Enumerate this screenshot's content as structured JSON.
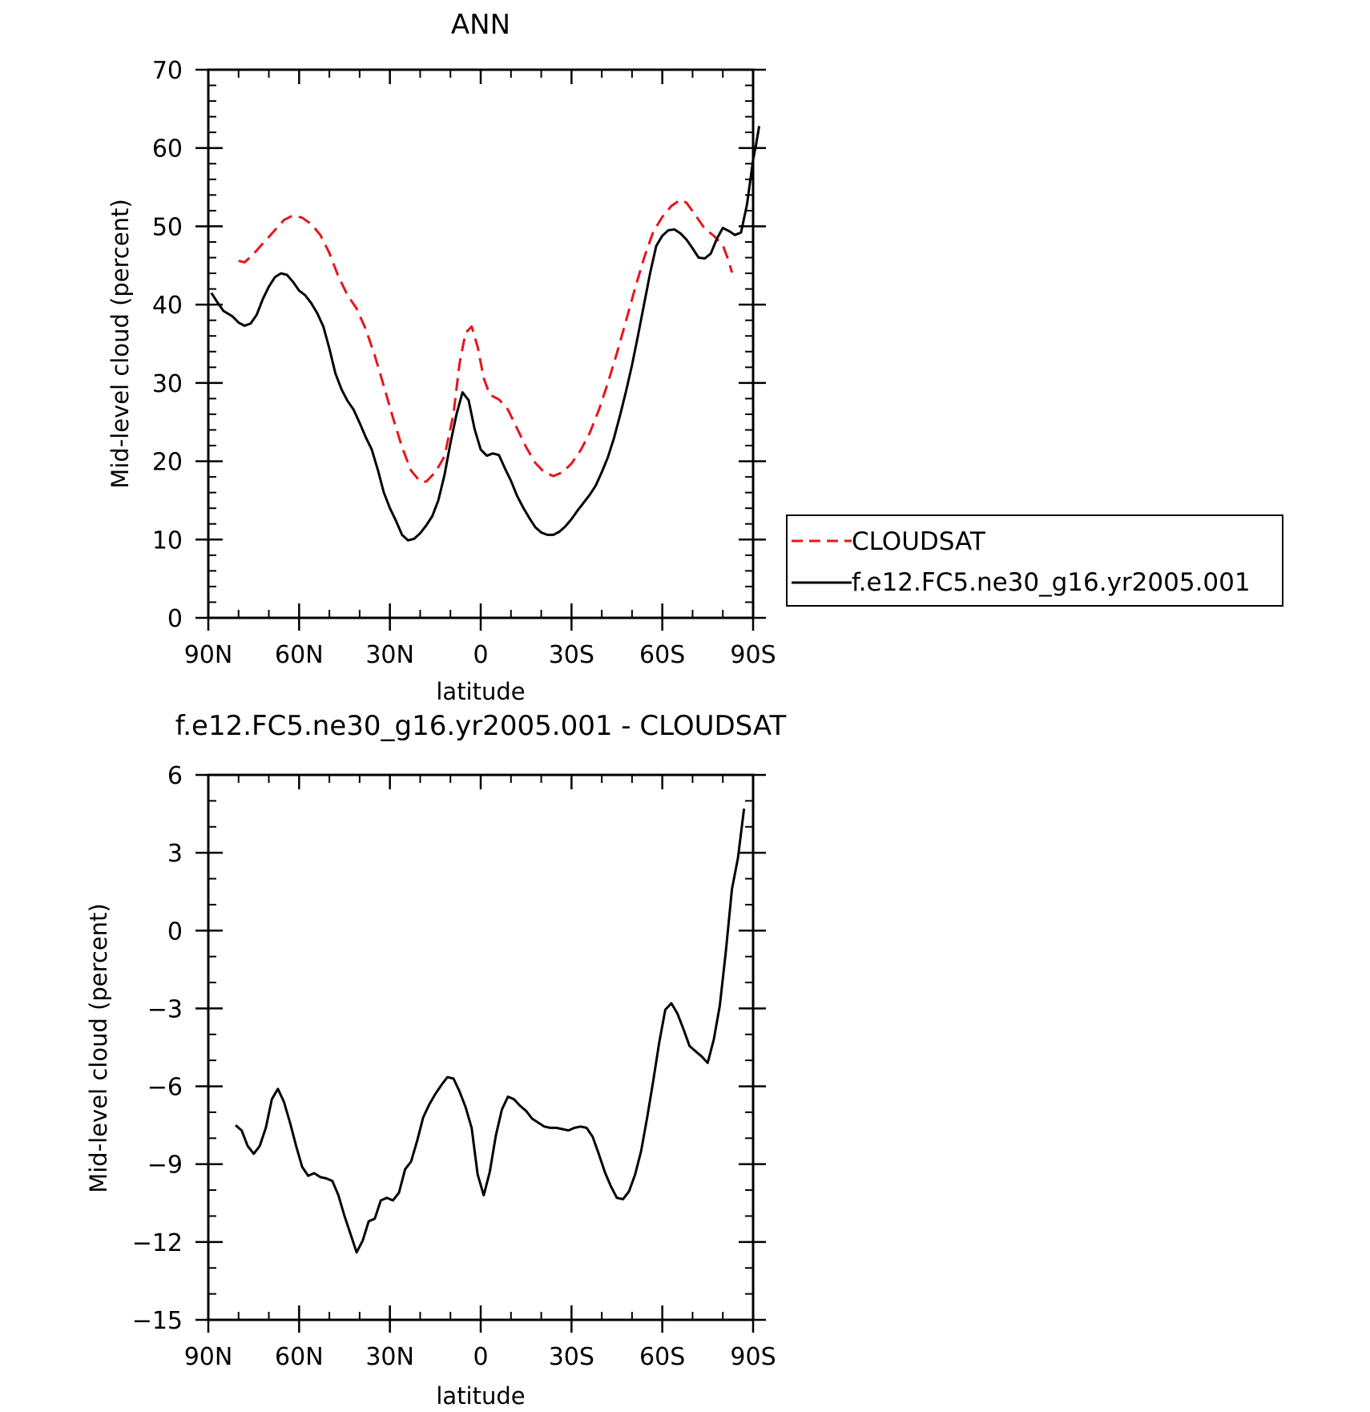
{
  "chart_data": [
    {
      "type": "line",
      "title": "ANN",
      "xlabel": "latitude",
      "ylabel": "Mid-level cloud (percent)",
      "xlim": [
        90,
        -90
      ],
      "ylim": [
        0,
        70
      ],
      "x_ticks": [
        90,
        60,
        30,
        0,
        -30,
        -60,
        -90
      ],
      "x_tick_labels": [
        "90N",
        "60N",
        "30N",
        "0",
        "30S",
        "60S",
        "90S"
      ],
      "y_ticks": [
        0,
        10,
        20,
        30,
        40,
        50,
        60,
        70
      ],
      "y_tick_labels": [
        "0",
        "10",
        "20",
        "30",
        "40",
        "50",
        "60",
        "70"
      ],
      "legend_position": "right",
      "series": [
        {
          "name": "CLOUDSAT",
          "color": "#e8141b",
          "dash": "dashed",
          "points": [
            [
              80,
              45.6
            ],
            [
              78,
              45.4
            ],
            [
              75,
              46.5
            ],
            [
              72,
              47.8
            ],
            [
              68,
              49.5
            ],
            [
              65,
              50.8
            ],
            [
              62,
              51.4
            ],
            [
              59,
              51.1
            ],
            [
              56,
              50.3
            ],
            [
              53,
              48.9
            ],
            [
              50,
              46.6
            ],
            [
              47,
              43.6
            ],
            [
              44,
              41.2
            ],
            [
              41,
              39.5
            ],
            [
              38,
              36.9
            ],
            [
              35,
              33.5
            ],
            [
              32,
              29.6
            ],
            [
              29,
              25.6
            ],
            [
              26,
              21.8
            ],
            [
              23,
              18.8
            ],
            [
              20,
              17.4
            ],
            [
              18,
              17.4
            ],
            [
              15,
              18.6
            ],
            [
              12,
              20.6
            ],
            [
              9,
              26.0
            ],
            [
              7,
              32.5
            ],
            [
              5,
              36.4
            ],
            [
              3,
              37.2
            ],
            [
              1,
              34.6
            ],
            [
              -1,
              30.6
            ],
            [
              -3,
              28.5
            ],
            [
              -6,
              27.9
            ],
            [
              -9,
              26.6
            ],
            [
              -12,
              24.2
            ],
            [
              -15,
              21.8
            ],
            [
              -18,
              19.8
            ],
            [
              -21,
              18.6
            ],
            [
              -24,
              18.1
            ],
            [
              -27,
              18.6
            ],
            [
              -30,
              19.7
            ],
            [
              -33,
              21.4
            ],
            [
              -36,
              23.6
            ],
            [
              -39,
              26.5
            ],
            [
              -42,
              30.0
            ],
            [
              -45,
              33.8
            ],
            [
              -48,
              37.9
            ],
            [
              -51,
              42.1
            ],
            [
              -54,
              46.0
            ],
            [
              -57,
              49.3
            ],
            [
              -60,
              51.2
            ],
            [
              -63,
              52.6
            ],
            [
              -66,
              53.4
            ],
            [
              -68,
              53.0
            ],
            [
              -71,
              51.4
            ],
            [
              -74,
              49.7
            ],
            [
              -77,
              48.8
            ],
            [
              -80,
              47.6
            ],
            [
              -82,
              45.5
            ],
            [
              -83,
              44.1
            ]
          ]
        },
        {
          "name": "f.e12.FC5.ne30_g16.yr2005.001",
          "color": "#000000",
          "dash": "solid",
          "points": [
            [
              89,
              41.5
            ],
            [
              87,
              40.3
            ],
            [
              85,
              39.2
            ],
            [
              82,
              38.5
            ],
            [
              80,
              37.7
            ],
            [
              78,
              37.3
            ],
            [
              76,
              37.6
            ],
            [
              74,
              38.7
            ],
            [
              72,
              40.7
            ],
            [
              70,
              42.3
            ],
            [
              68,
              43.5
            ],
            [
              66,
              44.0
            ],
            [
              64,
              43.8
            ],
            [
              62,
              42.9
            ],
            [
              60,
              41.8
            ],
            [
              58,
              41.2
            ],
            [
              56,
              40.2
            ],
            [
              54,
              38.9
            ],
            [
              52,
              37.2
            ],
            [
              50,
              34.4
            ],
            [
              48,
              31.2
            ],
            [
              46,
              29.2
            ],
            [
              44,
              27.7
            ],
            [
              42,
              26.6
            ],
            [
              40,
              24.9
            ],
            [
              38,
              23.1
            ],
            [
              36,
              21.5
            ],
            [
              34,
              18.9
            ],
            [
              32,
              16.0
            ],
            [
              30,
              14.0
            ],
            [
              28,
              12.4
            ],
            [
              26,
              10.6
            ],
            [
              24,
              9.9
            ],
            [
              22,
              10.1
            ],
            [
              20,
              10.8
            ],
            [
              18,
              11.8
            ],
            [
              16,
              13.0
            ],
            [
              14,
              15.0
            ],
            [
              12,
              18.2
            ],
            [
              10,
              22.3
            ],
            [
              8,
              26.0
            ],
            [
              6,
              28.8
            ],
            [
              4,
              27.8
            ],
            [
              2,
              24.1
            ],
            [
              0,
              21.5
            ],
            [
              -2,
              20.7
            ],
            [
              -4,
              21.0
            ],
            [
              -6,
              20.8
            ],
            [
              -8,
              19.1
            ],
            [
              -10,
              17.5
            ],
            [
              -12,
              15.6
            ],
            [
              -14,
              14.1
            ],
            [
              -16,
              12.8
            ],
            [
              -18,
              11.6
            ],
            [
              -20,
              10.9
            ],
            [
              -22,
              10.6
            ],
            [
              -24,
              10.6
            ],
            [
              -26,
              11.0
            ],
            [
              -28,
              11.7
            ],
            [
              -30,
              12.6
            ],
            [
              -32,
              13.7
            ],
            [
              -34,
              14.7
            ],
            [
              -36,
              15.7
            ],
            [
              -38,
              16.9
            ],
            [
              -40,
              18.6
            ],
            [
              -42,
              20.5
            ],
            [
              -44,
              22.9
            ],
            [
              -46,
              25.8
            ],
            [
              -48,
              28.9
            ],
            [
              -50,
              32.3
            ],
            [
              -52,
              36.1
            ],
            [
              -54,
              40.1
            ],
            [
              -56,
              44.1
            ],
            [
              -58,
              47.5
            ],
            [
              -60,
              48.8
            ],
            [
              -62,
              49.5
            ],
            [
              -64,
              49.6
            ],
            [
              -66,
              49.1
            ],
            [
              -68,
              48.3
            ],
            [
              -70,
              47.2
            ],
            [
              -72,
              46.0
            ],
            [
              -74,
              45.9
            ],
            [
              -76,
              46.5
            ],
            [
              -78,
              48.4
            ],
            [
              -80,
              49.8
            ],
            [
              -82,
              49.4
            ],
            [
              -84,
              48.9
            ],
            [
              -86,
              49.2
            ],
            [
              -88,
              52.8
            ],
            [
              -90,
              58.5
            ],
            [
              -91,
              60.5
            ],
            [
              -92,
              62.8
            ]
          ]
        }
      ]
    },
    {
      "type": "line",
      "title": "f.e12.FC5.ne30_g16.yr2005.001 - CLOUDSAT",
      "xlabel": "latitude",
      "ylabel": "Mid-level cloud (percent)",
      "xlim": [
        90,
        -90
      ],
      "ylim": [
        -15,
        6
      ],
      "x_ticks": [
        90,
        60,
        30,
        0,
        -30,
        -60,
        -90
      ],
      "x_tick_labels": [
        "90N",
        "60N",
        "30N",
        "0",
        "30S",
        "60S",
        "90S"
      ],
      "y_ticks": [
        -15,
        -12,
        -9,
        -6,
        -3,
        0,
        3,
        6
      ],
      "y_tick_labels": [
        "−15",
        "−12",
        "−9",
        "−6",
        "−3",
        "0",
        "3",
        "6"
      ],
      "series": [
        {
          "color": "#000000",
          "dash": "solid",
          "points": [
            [
              81,
              -7.5
            ],
            [
              79,
              -7.7
            ],
            [
              77,
              -8.3
            ],
            [
              75,
              -8.6
            ],
            [
              73,
              -8.3
            ],
            [
              71,
              -7.6
            ],
            [
              69,
              -6.5
            ],
            [
              67,
              -6.1
            ],
            [
              65,
              -6.6
            ],
            [
              63,
              -7.4
            ],
            [
              61,
              -8.3
            ],
            [
              59,
              -9.1
            ],
            [
              57,
              -9.45
            ],
            [
              55,
              -9.35
            ],
            [
              53,
              -9.5
            ],
            [
              51,
              -9.55
            ],
            [
              49,
              -9.65
            ],
            [
              47,
              -10.2
            ],
            [
              45,
              -11.0
            ],
            [
              43,
              -11.7
            ],
            [
              41,
              -12.4
            ],
            [
              39,
              -11.95
            ],
            [
              37,
              -11.2
            ],
            [
              35,
              -11.1
            ],
            [
              33,
              -10.4
            ],
            [
              31,
              -10.3
            ],
            [
              29,
              -10.4
            ],
            [
              27,
              -10.1
            ],
            [
              25,
              -9.2
            ],
            [
              23,
              -8.9
            ],
            [
              21,
              -8.1
            ],
            [
              19,
              -7.2
            ],
            [
              17,
              -6.7
            ],
            [
              15,
              -6.3
            ],
            [
              13,
              -5.95
            ],
            [
              11,
              -5.65
            ],
            [
              9,
              -5.7
            ],
            [
              7,
              -6.2
            ],
            [
              5,
              -6.8
            ],
            [
              3,
              -7.6
            ],
            [
              1,
              -9.4
            ],
            [
              -1,
              -10.2
            ],
            [
              -3,
              -9.3
            ],
            [
              -5,
              -7.9
            ],
            [
              -7,
              -6.9
            ],
            [
              -9,
              -6.4
            ],
            [
              -11,
              -6.5
            ],
            [
              -13,
              -6.75
            ],
            [
              -15,
              -6.95
            ],
            [
              -17,
              -7.25
            ],
            [
              -19,
              -7.4
            ],
            [
              -21,
              -7.55
            ],
            [
              -23,
              -7.6
            ],
            [
              -25,
              -7.6
            ],
            [
              -27,
              -7.65
            ],
            [
              -29,
              -7.7
            ],
            [
              -31,
              -7.6
            ],
            [
              -33,
              -7.55
            ],
            [
              -35,
              -7.6
            ],
            [
              -37,
              -7.95
            ],
            [
              -39,
              -8.6
            ],
            [
              -41,
              -9.3
            ],
            [
              -43,
              -9.85
            ],
            [
              -45,
              -10.3
            ],
            [
              -47,
              -10.35
            ],
            [
              -49,
              -10.05
            ],
            [
              -51,
              -9.4
            ],
            [
              -53,
              -8.5
            ],
            [
              -55,
              -7.2
            ],
            [
              -57,
              -5.8
            ],
            [
              -59,
              -4.3
            ],
            [
              -61,
              -3.05
            ],
            [
              -63,
              -2.8
            ],
            [
              -65,
              -3.2
            ],
            [
              -67,
              -3.8
            ],
            [
              -69,
              -4.45
            ],
            [
              -71,
              -4.65
            ],
            [
              -73,
              -4.85
            ],
            [
              -75,
              -5.1
            ],
            [
              -77,
              -4.2
            ],
            [
              -79,
              -2.9
            ],
            [
              -81,
              -0.8
            ],
            [
              -83,
              1.6
            ],
            [
              -85,
              2.8
            ],
            [
              -87,
              4.7
            ]
          ]
        }
      ]
    }
  ]
}
